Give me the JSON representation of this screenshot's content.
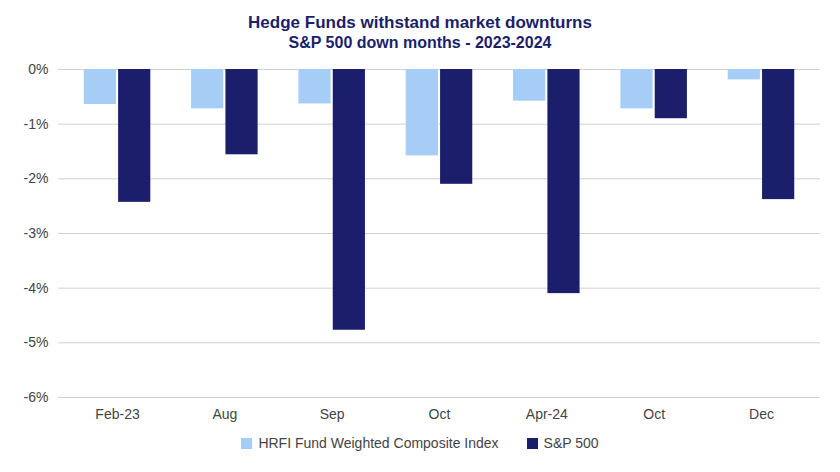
{
  "chart_data": {
    "type": "bar",
    "title": "Hedge Funds withstand market downturns",
    "subtitle": "S&P 500 down months - 2023-2024",
    "categories": [
      "Feb-23",
      "Aug",
      "Sep",
      "Oct",
      "Apr-24",
      "Oct",
      "Dec"
    ],
    "series": [
      {
        "name": "HRFI Fund Weighted Composite Index",
        "color": "#a6cdf5",
        "values": [
          -0.64,
          -0.72,
          -0.63,
          -1.58,
          -0.58,
          -0.72,
          -0.19
        ]
      },
      {
        "name": "S&P 500",
        "color": "#1b1f6b",
        "values": [
          -2.43,
          -1.56,
          -4.77,
          -2.1,
          -4.1,
          -0.9,
          -2.38
        ]
      }
    ],
    "ylim": [
      -6,
      0
    ],
    "yticks": [
      {
        "value": 0,
        "label": "0%"
      },
      {
        "value": -1,
        "label": "-1%"
      },
      {
        "value": -2,
        "label": "-2%"
      },
      {
        "value": -3,
        "label": "-3%"
      },
      {
        "value": -4,
        "label": "-4%"
      },
      {
        "value": -5,
        "label": "-5%"
      },
      {
        "value": -6,
        "label": "-6%"
      }
    ],
    "grid": true,
    "legend": "bottom"
  }
}
